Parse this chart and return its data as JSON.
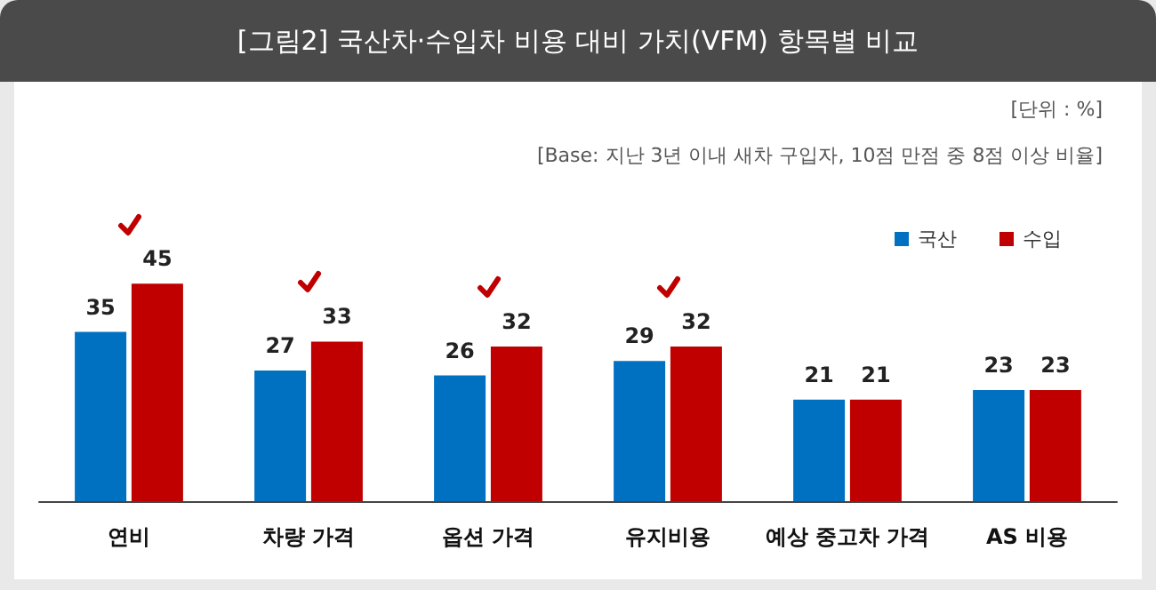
{
  "chart_data": {
    "type": "bar",
    "title": "[그림2] 국산차·수입차 비용 대비 가치(VFM) 항목별 비교",
    "annotations": [
      "[단위 : %]",
      "[Base: 지난 3년 이내 새차 구입자, 10점 만점 중 8점 이상 비율]"
    ],
    "categories": [
      "연비",
      "차량 가격",
      "옵션 가격",
      "유지비용",
      "예상 중고차 가격",
      "AS 비용"
    ],
    "series": [
      {
        "name": "국산",
        "color": "#0070c0",
        "values": [
          35,
          27,
          26,
          29,
          21,
          23
        ]
      },
      {
        "name": "수입",
        "color": "#c00000",
        "values": [
          45,
          33,
          32,
          32,
          21,
          23
        ]
      }
    ],
    "data_labels": true,
    "legend": "top right"
  }
}
